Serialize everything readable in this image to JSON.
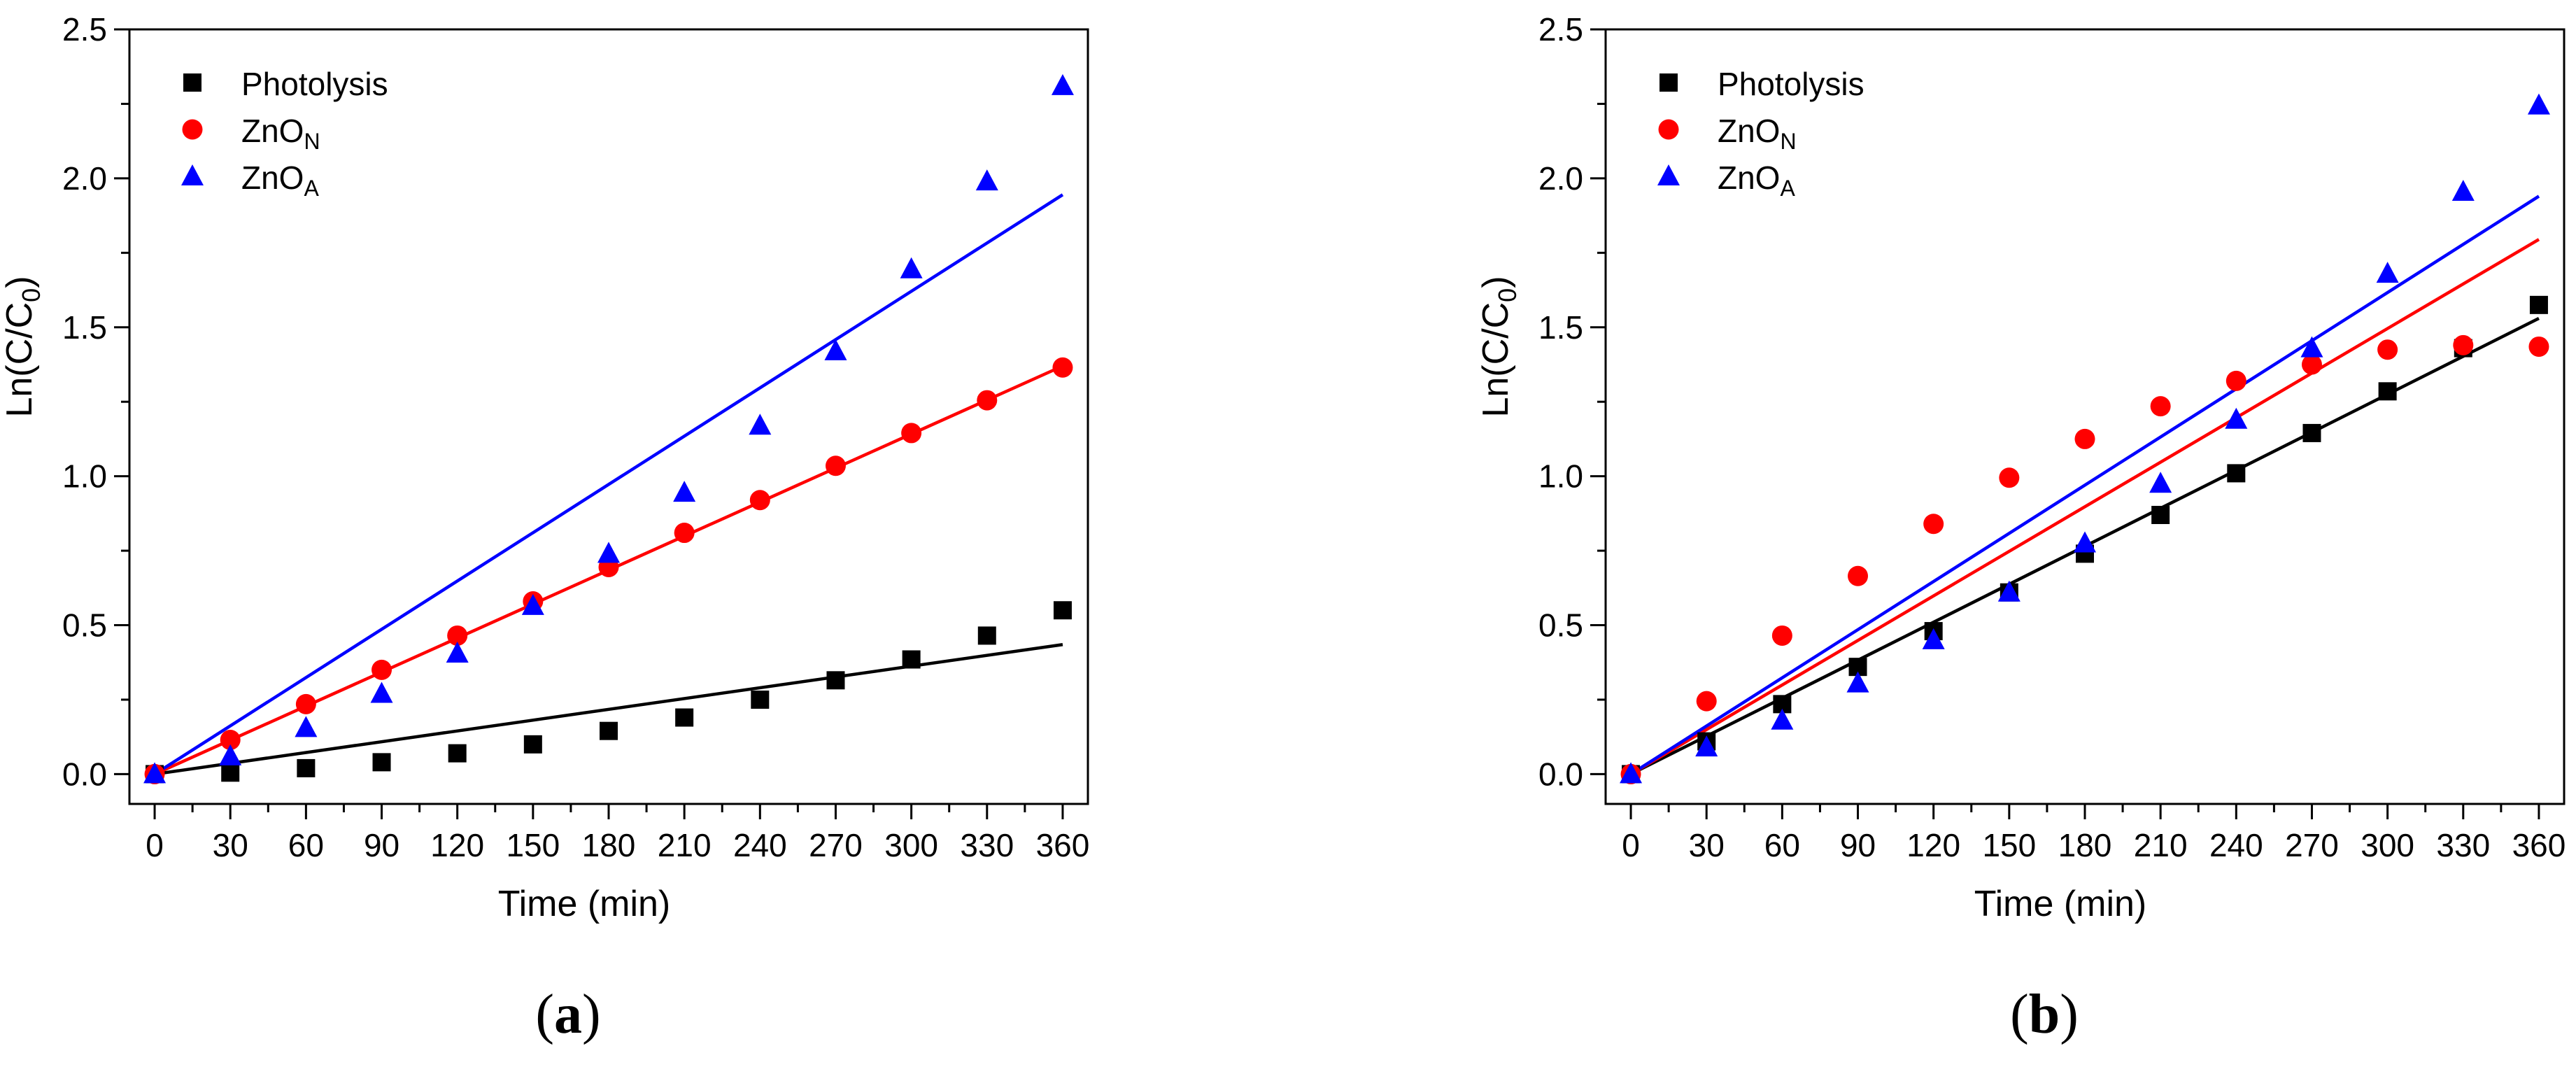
{
  "chart_data": [
    {
      "type": "scatter",
      "panel_label": "a",
      "xlabel": "Time (min)",
      "ylabel_main": "Ln(C/C",
      "ylabel_sub": "0",
      "ylabel_close": ")",
      "xlim": [
        -10,
        370
      ],
      "ylim": [
        -0.1,
        2.5
      ],
      "xticks": [
        0,
        30,
        60,
        90,
        120,
        150,
        180,
        210,
        240,
        270,
        300,
        330,
        360
      ],
      "yticks": [
        0.0,
        0.5,
        1.0,
        1.5,
        2.0,
        2.5
      ],
      "ytick_labels": [
        "0.0",
        "0.5",
        "1.0",
        "1.5",
        "2.0",
        "2.5"
      ],
      "legend_position": "top-left",
      "x": [
        0,
        30,
        60,
        90,
        120,
        150,
        180,
        210,
        240,
        270,
        300,
        330,
        360
      ],
      "series": [
        {
          "name": "Photolysis",
          "name_sub": "",
          "marker": "square",
          "color": "#000000",
          "values": [
            0.0,
            0.005,
            0.02,
            0.04,
            0.07,
            0.1,
            0.145,
            0.19,
            0.25,
            0.315,
            0.385,
            0.465,
            0.55
          ],
          "fit": [
            0,
            0.0,
            360,
            0.435
          ]
        },
        {
          "name": "ZnO",
          "name_sub": "N",
          "marker": "circle",
          "color": "#ff0000",
          "values": [
            0.0,
            0.115,
            0.235,
            0.35,
            0.465,
            0.58,
            0.695,
            0.81,
            0.92,
            1.035,
            1.145,
            1.255,
            1.365
          ],
          "fit": [
            0,
            0.0,
            360,
            1.37
          ]
        },
        {
          "name": "ZnO",
          "name_sub": "A",
          "marker": "triangle",
          "color": "#0000ff",
          "values": [
            0.0,
            0.06,
            0.155,
            0.27,
            0.405,
            0.565,
            0.74,
            0.945,
            1.17,
            1.42,
            1.695,
            1.99,
            2.31
          ],
          "fit": [
            0,
            0.0,
            360,
            1.945
          ]
        }
      ]
    },
    {
      "type": "scatter",
      "panel_label": "b",
      "xlabel": "Time (min)",
      "ylabel_main": "Ln(C/C",
      "ylabel_sub": "0",
      "ylabel_close": ")",
      "xlim": [
        -10,
        370
      ],
      "ylim": [
        -0.1,
        2.5
      ],
      "xticks": [
        0,
        30,
        60,
        90,
        120,
        150,
        180,
        210,
        240,
        270,
        300,
        330,
        360
      ],
      "yticks": [
        0.0,
        0.5,
        1.0,
        1.5,
        2.0,
        2.5
      ],
      "ytick_labels": [
        "0.0",
        "0.5",
        "1.0",
        "1.5",
        "2.0",
        "2.5"
      ],
      "legend_position": "top-left",
      "x": [
        0,
        30,
        60,
        90,
        120,
        150,
        180,
        210,
        240,
        270,
        300,
        330,
        360
      ],
      "series": [
        {
          "name": "Photolysis",
          "name_sub": "",
          "marker": "square",
          "color": "#000000",
          "values": [
            0.0,
            0.11,
            0.235,
            0.36,
            0.48,
            0.61,
            0.74,
            0.87,
            1.01,
            1.145,
            1.285,
            1.43,
            1.575
          ],
          "fit": [
            0,
            0.0,
            360,
            1.53
          ]
        },
        {
          "name": "ZnO",
          "name_sub": "N",
          "marker": "circle",
          "color": "#ff0000",
          "values": [
            0.0,
            0.245,
            0.465,
            0.665,
            0.84,
            0.995,
            1.125,
            1.235,
            1.32,
            1.375,
            1.425,
            1.44,
            1.435
          ],
          "fit": [
            0,
            0.0,
            360,
            1.795
          ]
        },
        {
          "name": "ZnO",
          "name_sub": "A",
          "marker": "triangle",
          "color": "#0000ff",
          "values": [
            0.0,
            0.09,
            0.18,
            0.305,
            0.45,
            0.61,
            0.775,
            0.975,
            1.19,
            1.43,
            1.68,
            1.955,
            2.245
          ],
          "fit": [
            0,
            0.0,
            360,
            1.94
          ]
        }
      ]
    }
  ]
}
